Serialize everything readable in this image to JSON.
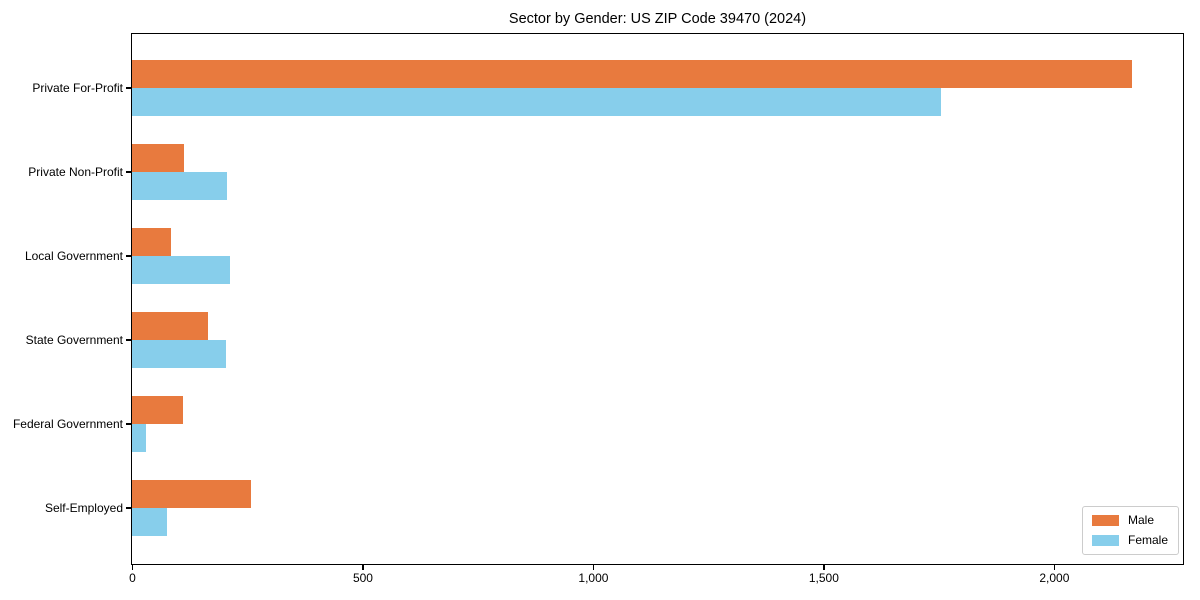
{
  "chart_data": {
    "type": "bar",
    "orientation": "horizontal",
    "title": "Sector by Gender: US ZIP Code 39470 (2024)",
    "categories": [
      "Private For-Profit",
      "Private Non-Profit",
      "Local Government",
      "State Government",
      "Federal Government",
      "Self-Employed"
    ],
    "series": [
      {
        "name": "Male",
        "color": "#E87A3E",
        "values": [
          2170,
          113,
          85,
          164,
          111,
          258
        ]
      },
      {
        "name": "Female",
        "color": "#87CEEB",
        "values": [
          1756,
          206,
          213,
          204,
          30,
          75
        ]
      }
    ],
    "xlabel": "",
    "ylabel": "",
    "xlim": [
      0,
      2278
    ],
    "xticks": [
      0,
      500,
      1000,
      1500,
      2000
    ],
    "xtick_labels": [
      "0",
      "500",
      "1,000",
      "1,500",
      "2,000"
    ],
    "legend_position": "lower-right",
    "grid": false,
    "background_color": "#ffffff",
    "axis_color": "#000000"
  }
}
